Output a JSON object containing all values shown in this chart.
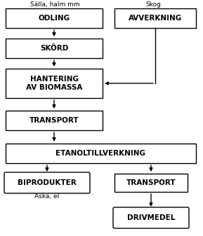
{
  "background_color": "#ffffff",
  "label_odling": "ODLING",
  "label_skord": "SKÖRD",
  "label_hantering": "HANTERING\nAV BIOMASSA",
  "label_transport1": "TRANSPORT",
  "label_etanol": "ETANOLTILLVERKNING",
  "label_biprod": "BIPRODUKTER",
  "label_transport2": "TRANSPORT",
  "label_drivmedel": "DRIVMEDEL",
  "label_avverkning": "AVVERKNING",
  "header_left": "Sälla, halm mm",
  "header_right": "Skog",
  "footer_left": "Aska, el",
  "font_size": 7.5,
  "header_fontsize": 6.5
}
